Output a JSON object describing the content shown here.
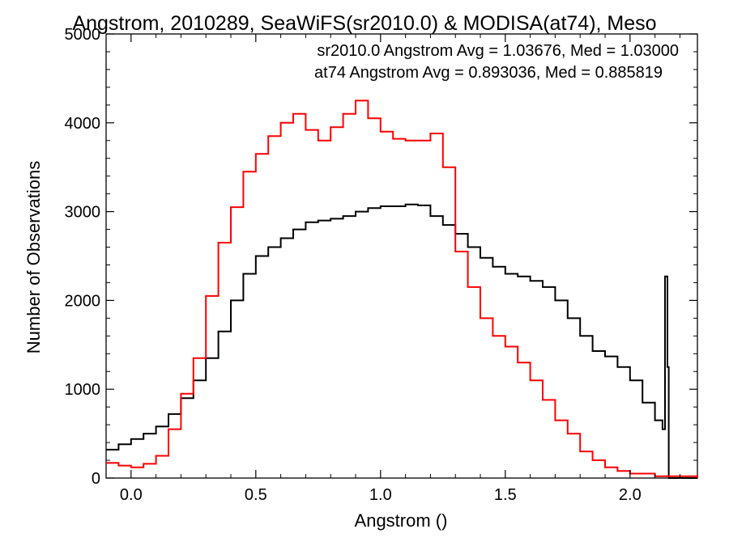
{
  "chart_data": {
    "type": "line",
    "title": "Angstrom, 2010289, SeaWiFS(sr2010.0) & MODISA(at74), Meso",
    "xlabel": "Angstrom ()",
    "ylabel": "Number of Observations",
    "xlim": [
      -0.1,
      2.27
    ],
    "ylim": [
      0,
      5000
    ],
    "x_ticks": [
      0.0,
      0.5,
      1.0,
      1.5,
      2.0
    ],
    "x_tick_labels": [
      "0.0",
      "0.5",
      "1.0",
      "1.5",
      "2.0"
    ],
    "y_ticks": [
      0,
      1000,
      2000,
      3000,
      4000,
      5000
    ],
    "y_tick_labels": [
      "0",
      "1000",
      "2000",
      "3000",
      "4000",
      "5000"
    ],
    "grid": false,
    "legend": "top-right",
    "annotations": [
      {
        "text": "sr2010.0 Angstrom Avg = 1.03676, Med = 1.03000",
        "color": "#000000"
      },
      {
        "text": "at74 Angstrom Avg = 0.893036, Med = 0.885819",
        "color": "#ff0000"
      }
    ],
    "series": [
      {
        "name": "sr2010.0",
        "color": "#000000",
        "points": [
          [
            -0.1,
            320
          ],
          [
            -0.05,
            380
          ],
          [
            0.0,
            440
          ],
          [
            0.05,
            500
          ],
          [
            0.1,
            580
          ],
          [
            0.15,
            720
          ],
          [
            0.2,
            900
          ],
          [
            0.25,
            1100
          ],
          [
            0.3,
            1350
          ],
          [
            0.35,
            1650
          ],
          [
            0.4,
            2000
          ],
          [
            0.45,
            2300
          ],
          [
            0.5,
            2500
          ],
          [
            0.55,
            2600
          ],
          [
            0.6,
            2700
          ],
          [
            0.65,
            2800
          ],
          [
            0.7,
            2880
          ],
          [
            0.75,
            2900
          ],
          [
            0.8,
            2920
          ],
          [
            0.85,
            2950
          ],
          [
            0.9,
            3000
          ],
          [
            0.95,
            3040
          ],
          [
            1.0,
            3060
          ],
          [
            1.05,
            3060
          ],
          [
            1.1,
            3080
          ],
          [
            1.15,
            3070
          ],
          [
            1.2,
            2950
          ],
          [
            1.25,
            2850
          ],
          [
            1.3,
            2750
          ],
          [
            1.35,
            2600
          ],
          [
            1.4,
            2480
          ],
          [
            1.45,
            2380
          ],
          [
            1.5,
            2300
          ],
          [
            1.55,
            2270
          ],
          [
            1.6,
            2220
          ],
          [
            1.65,
            2150
          ],
          [
            1.7,
            2000
          ],
          [
            1.75,
            1800
          ],
          [
            1.8,
            1600
          ],
          [
            1.85,
            1430
          ],
          [
            1.9,
            1370
          ],
          [
            1.95,
            1250
          ],
          [
            2.0,
            1100
          ],
          [
            2.05,
            850
          ],
          [
            2.1,
            650
          ],
          [
            2.13,
            550
          ],
          [
            2.14,
            2270
          ],
          [
            2.15,
            1250
          ],
          [
            2.155,
            0
          ],
          [
            2.27,
            0
          ]
        ]
      },
      {
        "name": "at74",
        "color": "#ff0000",
        "points": [
          [
            -0.1,
            170
          ],
          [
            -0.05,
            140
          ],
          [
            0.0,
            120
          ],
          [
            0.05,
            160
          ],
          [
            0.1,
            250
          ],
          [
            0.15,
            550
          ],
          [
            0.2,
            950
          ],
          [
            0.25,
            1350
          ],
          [
            0.3,
            2050
          ],
          [
            0.35,
            2650
          ],
          [
            0.4,
            3050
          ],
          [
            0.45,
            3450
          ],
          [
            0.5,
            3650
          ],
          [
            0.55,
            3850
          ],
          [
            0.6,
            4000
          ],
          [
            0.65,
            4100
          ],
          [
            0.7,
            3920
          ],
          [
            0.75,
            3800
          ],
          [
            0.8,
            3950
          ],
          [
            0.85,
            4100
          ],
          [
            0.9,
            4250
          ],
          [
            0.95,
            4050
          ],
          [
            1.0,
            3900
          ],
          [
            1.05,
            3820
          ],
          [
            1.1,
            3800
          ],
          [
            1.15,
            3800
          ],
          [
            1.2,
            3880
          ],
          [
            1.25,
            3500
          ],
          [
            1.3,
            2550
          ],
          [
            1.35,
            2150
          ],
          [
            1.4,
            1800
          ],
          [
            1.45,
            1600
          ],
          [
            1.5,
            1480
          ],
          [
            1.55,
            1300
          ],
          [
            1.6,
            1100
          ],
          [
            1.65,
            880
          ],
          [
            1.7,
            650
          ],
          [
            1.75,
            500
          ],
          [
            1.8,
            300
          ],
          [
            1.85,
            200
          ],
          [
            1.9,
            120
          ],
          [
            1.95,
            80
          ],
          [
            2.0,
            50
          ],
          [
            2.1,
            20
          ],
          [
            2.27,
            0
          ]
        ]
      }
    ]
  }
}
